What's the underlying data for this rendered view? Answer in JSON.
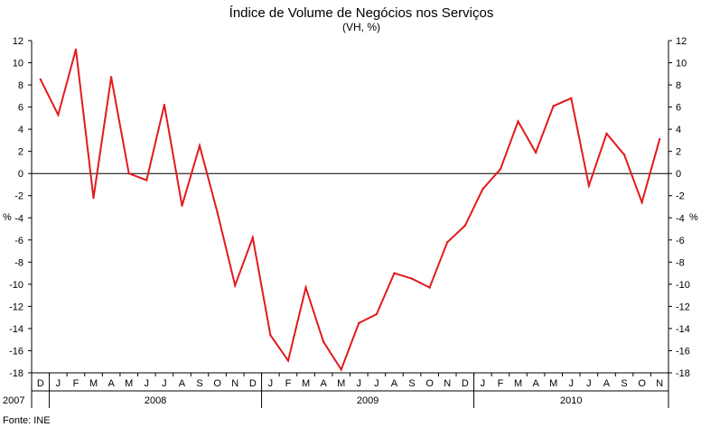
{
  "chart_data": {
    "type": "line",
    "title": "Índice de Volume de Negócios nos Serviços",
    "subtitle": "(VH, %)",
    "ylabel_left": "%",
    "ylabel_right": "%",
    "ylim": [
      -18,
      12
    ],
    "yticks": [
      12,
      10,
      8,
      6,
      4,
      2,
      0,
      -2,
      -4,
      -6,
      -8,
      -10,
      -12,
      -14,
      -16,
      -18
    ],
    "categories": [
      "D",
      "J",
      "F",
      "M",
      "A",
      "M",
      "J",
      "J",
      "A",
      "S",
      "O",
      "N",
      "D",
      "J",
      "F",
      "M",
      "A",
      "M",
      "J",
      "J",
      "A",
      "S",
      "O",
      "N",
      "D",
      "J",
      "F",
      "M",
      "A",
      "M",
      "J",
      "J",
      "A",
      "S",
      "O",
      "N"
    ],
    "years": [
      {
        "label": "2007",
        "start": 0,
        "end": 0
      },
      {
        "label": "2008",
        "start": 1,
        "end": 12
      },
      {
        "label": "2009",
        "start": 13,
        "end": 24
      },
      {
        "label": "2010",
        "start": 25,
        "end": 35
      }
    ],
    "series": [
      {
        "color": "#e31a1c",
        "values": [
          8.5,
          5.3,
          11.2,
          -2.2,
          8.7,
          0.0,
          -0.6,
          6.2,
          -2.9,
          2.5,
          -3.5,
          -10.1,
          -5.8,
          -14.6,
          -16.9,
          -10.3,
          -15.2,
          -17.7,
          -13.5,
          -12.7,
          -9.0,
          -9.5,
          -10.3,
          -6.2,
          -4.7,
          -1.4,
          0.4,
          4.7,
          1.9,
          6.1,
          6.8,
          -1.1,
          3.6,
          1.7,
          -2.6,
          3.1
        ]
      }
    ],
    "grid": false,
    "axis_color": "#000000"
  },
  "source": "Fonte: INE"
}
